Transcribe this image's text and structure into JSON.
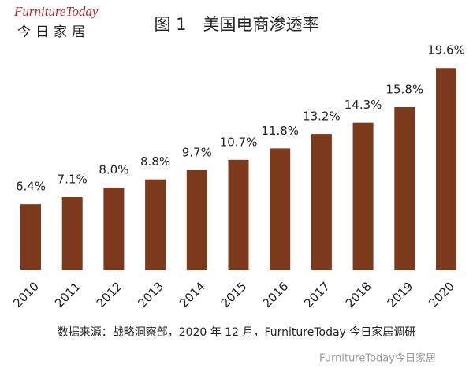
{
  "header": {
    "logo": "FurnitureToday",
    "logo_subtitle": "今日家居"
  },
  "chart_data": {
    "type": "bar",
    "title": "图 1　美国电商渗透率",
    "categories": [
      "2010",
      "2011",
      "2012",
      "2013",
      "2014",
      "2015",
      "2016",
      "2017",
      "2018",
      "2019",
      "2020"
    ],
    "values": [
      6.4,
      7.1,
      8.0,
      8.8,
      9.7,
      10.7,
      11.8,
      13.2,
      14.3,
      15.8,
      19.6
    ],
    "value_labels": [
      "6.4%",
      "7.1%",
      "8.0%",
      "8.8%",
      "9.7%",
      "10.7%",
      "11.8%",
      "13.2%",
      "14.3%",
      "15.8%",
      "19.6%"
    ],
    "color": "#7c391c",
    "source": "数据来源：战略洞察部，2020 年 12 月，FurnitureToday 今日家居调研"
  },
  "watermark": "FurnitureToday今日家居"
}
